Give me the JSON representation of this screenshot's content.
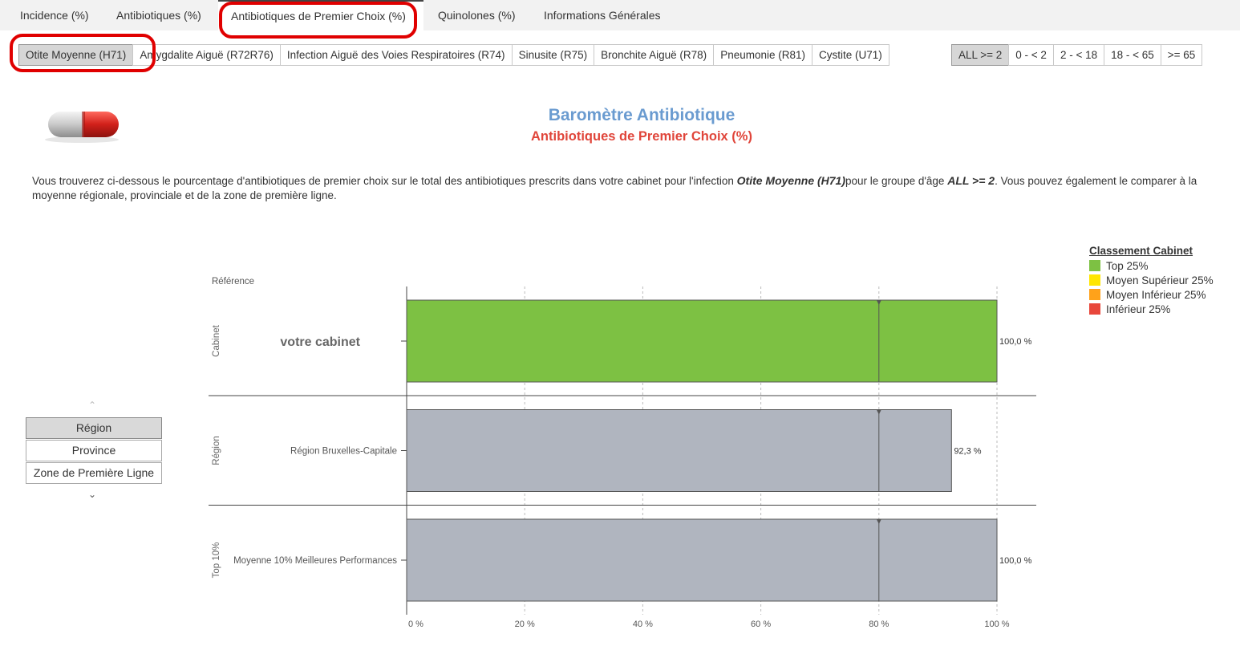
{
  "top_tabs": [
    {
      "label": "Incidence (%)",
      "active": false
    },
    {
      "label": "Antibiotiques (%)",
      "active": false
    },
    {
      "label": "Antibiotiques de Premier Choix (%)",
      "active": true
    },
    {
      "label": "Quinolones (%)",
      "active": false
    },
    {
      "label": "Informations Générales",
      "active": false
    }
  ],
  "infection_tabs": [
    {
      "label": "Otite Moyenne (H71)",
      "active": true
    },
    {
      "label": "Amygdalite Aiguë (R72R76)",
      "active": false
    },
    {
      "label": "Infection Aiguë des Voies Respiratoires (R74)",
      "active": false
    },
    {
      "label": "Sinusite (R75)",
      "active": false
    },
    {
      "label": "Bronchite Aiguë (R78)",
      "active": false
    },
    {
      "label": "Pneumonie (R81)",
      "active": false
    },
    {
      "label": "Cystite (U71)",
      "active": false
    }
  ],
  "age_tabs": [
    {
      "label": "ALL >= 2",
      "active": true
    },
    {
      "label": "0 - < 2",
      "active": false
    },
    {
      "label": "2 - < 18",
      "active": false
    },
    {
      "label": "18 - < 65",
      "active": false
    },
    {
      "label": ">= 65",
      "active": false
    }
  ],
  "header": {
    "title": "Baromètre Antibiotique",
    "subtitle": "Antibiotiques de Premier Choix (%)"
  },
  "description": {
    "part1": "Vous trouverez ci-dessous le pourcentage d'antibiotiques de premier choix sur le total des antibiotiques prescrits dans votre cabinet pour l'infection ",
    "infection": "Otite Moyenne (H71)",
    "part2": "pour le groupe d'âge ",
    "age_group": "ALL >= 2",
    "part3": ". Vous pouvez également le comparer à la moyenne régionale, provinciale et de la zone de première ligne."
  },
  "legend": {
    "title": "Classement Cabinet",
    "items": [
      {
        "label": "Top 25%",
        "color": "#7dc143"
      },
      {
        "label": "Moyen Supérieur 25%",
        "color": "#ffe600"
      },
      {
        "label": "Moyen Inférieur 25%",
        "color": "#ffa21a"
      },
      {
        "label": "Inférieur 25%",
        "color": "#e8473b"
      }
    ]
  },
  "selector": {
    "options": [
      {
        "label": "Région",
        "active": true
      },
      {
        "label": "Province",
        "active": false
      },
      {
        "label": "Zone de Première Ligne",
        "active": false
      }
    ]
  },
  "chart_data": {
    "type": "bar",
    "orientation": "horizontal",
    "reference_label": "Référence",
    "groups": [
      {
        "group": "Cabinet",
        "category": "votre cabinet",
        "value": 100.0,
        "value_label": "100,0 %",
        "color": "#7dc143"
      },
      {
        "group": "Région",
        "category": "Région Bruxelles-Capitale",
        "value": 92.3,
        "value_label": "92,3 %",
        "color": "#b0b5bf"
      },
      {
        "group": "Top 10%",
        "category": "Moyenne 10% Meilleures Performances",
        "value": 100.0,
        "value_label": "100,0 %",
        "color": "#b0b5bf"
      }
    ],
    "target_marker": 80,
    "xlim": [
      0,
      100
    ],
    "x_ticks": [
      0,
      20,
      40,
      60,
      80,
      100
    ],
    "x_tick_labels": [
      "0 %",
      "20 %",
      "40 %",
      "60 %",
      "80 %",
      "100 %"
    ],
    "grid": "vertical dashed"
  }
}
